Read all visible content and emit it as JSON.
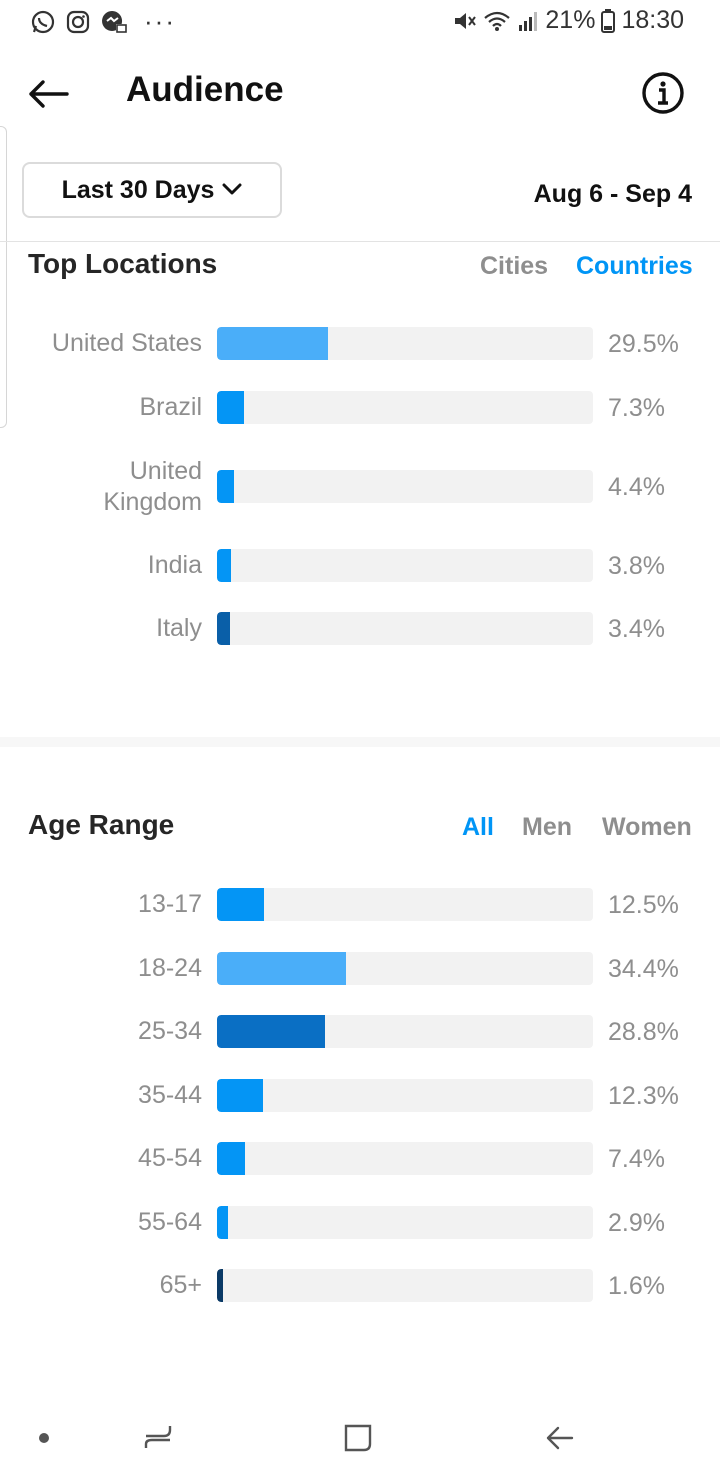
{
  "status_bar": {
    "battery": "21%",
    "time": "18:30",
    "icons": [
      "whatsapp-icon",
      "instagram-icon",
      "messenger-icon",
      "more-dots-icon",
      "mute-icon",
      "wifi-icon",
      "signal-icon",
      "battery-icon"
    ],
    "more": "···"
  },
  "header": {
    "title": "Audience"
  },
  "filters": {
    "period_label": "Last 30 Days",
    "date_range": "Aug 6 - Sep 4"
  },
  "top_locations": {
    "title": "Top Locations",
    "tabs": [
      {
        "label": "Cities",
        "active": false
      },
      {
        "label": "Countries",
        "active": true
      }
    ],
    "rows": [
      {
        "label": "United States",
        "value": 29.5,
        "display": "29.5%",
        "color": "#4aaef9"
      },
      {
        "label": "Brazil",
        "value": 7.3,
        "display": "7.3%",
        "color": "#0495f5"
      },
      {
        "label": "United Kingdom",
        "value": 4.4,
        "display": "4.4%",
        "color": "#0495f5"
      },
      {
        "label": "India",
        "value": 3.8,
        "display": "3.8%",
        "color": "#0495f5"
      },
      {
        "label": "Italy",
        "value": 3.4,
        "display": "3.4%",
        "color": "#0a5fa8"
      }
    ]
  },
  "age_range": {
    "title": "Age Range",
    "tabs": [
      {
        "label": "All",
        "active": true
      },
      {
        "label": "Men",
        "active": false
      },
      {
        "label": "Women",
        "active": false
      }
    ],
    "rows": [
      {
        "label": "13-17",
        "value": 12.5,
        "display": "12.5%",
        "color": "#0495f5"
      },
      {
        "label": "18-24",
        "value": 34.4,
        "display": "34.4%",
        "color": "#4aaef9"
      },
      {
        "label": "25-34",
        "value": 28.8,
        "display": "28.8%",
        "color": "#0a6fc4"
      },
      {
        "label": "35-44",
        "value": 12.3,
        "display": "12.3%",
        "color": "#0495f5"
      },
      {
        "label": "45-54",
        "value": 7.4,
        "display": "7.4%",
        "color": "#0495f5"
      },
      {
        "label": "55-64",
        "value": 2.9,
        "display": "2.9%",
        "color": "#0495f5"
      },
      {
        "label": "65+",
        "value": 1.6,
        "display": "1.6%",
        "color": "#0b3a66"
      }
    ]
  },
  "nav_bar": {
    "items": [
      "dot-icon",
      "recents-icon",
      "home-icon",
      "back-nav-icon"
    ]
  }
}
